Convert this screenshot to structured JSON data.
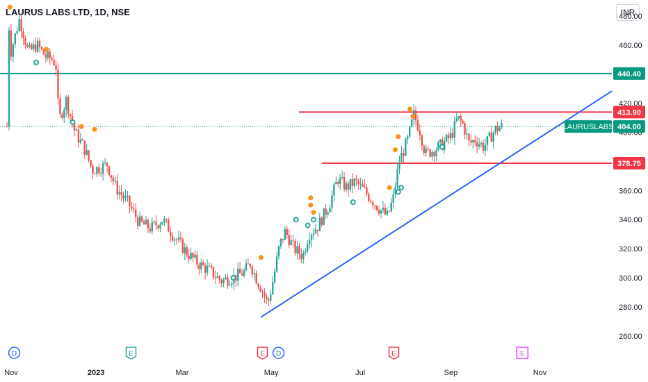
{
  "header": {
    "title": "LAURUS LABS LTD, 1D, NSE"
  },
  "toolbar": {
    "currency": "INR"
  },
  "colors": {
    "up": "#26a69a",
    "down": "#ef5350",
    "support_line": "#089981",
    "resistance_line": "#f23645",
    "trendline": "#2962ff",
    "marker": "#f7931a",
    "dividend_badge": "#2962ff",
    "earnings_badge": "#f23645",
    "split_badge": "#26a69a",
    "future_badge": "#e040fb",
    "last_price": "#089981"
  },
  "chart_data": {
    "type": "candlestick",
    "symbol_label": "LAURUSLABS",
    "ylim": [
      258,
      492
    ],
    "y_ticks": [
      480,
      460,
      440,
      420,
      400,
      380,
      360,
      340,
      320,
      300,
      280,
      260
    ],
    "y_tick_labels": [
      "480.00",
      "460.00",
      "440.00",
      "420.00",
      "400.00",
      "380.00",
      "360.00",
      "340.00",
      "320.00",
      "300.00",
      "280.00",
      "260.00"
    ],
    "x_range_days": [
      0,
      372
    ],
    "x_ticks": [
      {
        "day": 0,
        "label": "Nov"
      },
      {
        "day": 61,
        "label": "2023"
      },
      {
        "day": 120,
        "label": "Mar"
      },
      {
        "day": 181,
        "label": "May"
      },
      {
        "day": 242,
        "label": "Jul"
      },
      {
        "day": 304,
        "label": "Sep"
      },
      {
        "day": 365,
        "label": "Nov"
      }
    ],
    "horizontal_levels": [
      {
        "price": 440.4,
        "label": "440.40",
        "role": "support"
      },
      {
        "price": 413.9,
        "label": "413.90",
        "role": "resistance"
      },
      {
        "price": 378.75,
        "label": "378.75",
        "role": "resistance"
      }
    ],
    "last_price": {
      "price": 404.0,
      "label": "404.00"
    },
    "trendline": {
      "start": {
        "day": 174,
        "price": 273
      },
      "end": {
        "day": 420,
        "price": 432
      }
    },
    "waypoints": [
      [
        2,
        484
      ],
      [
        4,
        455
      ],
      [
        10,
        478
      ],
      [
        16,
        455
      ],
      [
        22,
        460
      ],
      [
        28,
        452
      ],
      [
        33,
        450
      ],
      [
        35,
        445
      ],
      [
        37,
        408
      ],
      [
        42,
        422
      ],
      [
        48,
        400
      ],
      [
        54,
        390
      ],
      [
        60,
        374
      ],
      [
        66,
        376
      ],
      [
        70,
        378
      ],
      [
        76,
        362
      ],
      [
        84,
        352
      ],
      [
        92,
        338
      ],
      [
        100,
        334
      ],
      [
        108,
        340
      ],
      [
        116,
        328
      ],
      [
        124,
        318
      ],
      [
        132,
        310
      ],
      [
        140,
        305
      ],
      [
        148,
        298
      ],
      [
        156,
        300
      ],
      [
        164,
        304
      ],
      [
        168,
        310
      ],
      [
        172,
        300
      ],
      [
        176,
        292
      ],
      [
        180,
        282
      ],
      [
        184,
        300
      ],
      [
        188,
        322
      ],
      [
        192,
        332
      ],
      [
        198,
        320
      ],
      [
        204,
        315
      ],
      [
        208,
        330
      ],
      [
        214,
        335
      ],
      [
        222,
        350
      ],
      [
        228,
        368
      ],
      [
        234,
        362
      ],
      [
        240,
        366
      ],
      [
        246,
        360
      ],
      [
        250,
        355
      ],
      [
        256,
        348
      ],
      [
        262,
        342
      ],
      [
        266,
        355
      ],
      [
        270,
        380
      ],
      [
        276,
        395
      ],
      [
        280,
        412
      ],
      [
        284,
        402
      ],
      [
        288,
        385
      ],
      [
        294,
        388
      ],
      [
        300,
        392
      ],
      [
        306,
        398
      ],
      [
        310,
        410
      ],
      [
        314,
        405
      ],
      [
        318,
        392
      ],
      [
        322,
        395
      ],
      [
        328,
        390
      ],
      [
        332,
        396
      ],
      [
        336,
        402
      ],
      [
        340,
        404
      ]
    ],
    "markers": [
      {
        "day": 2,
        "price": 486
      },
      {
        "day": 27,
        "price": 457
      },
      {
        "day": 51,
        "price": 404
      },
      {
        "day": 60,
        "price": 402
      },
      {
        "day": 174,
        "price": 314
      },
      {
        "day": 208,
        "price": 355
      },
      {
        "day": 208,
        "price": 350
      },
      {
        "day": 210,
        "price": 345
      },
      {
        "day": 262,
        "price": 362
      },
      {
        "day": 266,
        "price": 388
      },
      {
        "day": 268,
        "price": 397
      },
      {
        "day": 276,
        "price": 416
      },
      {
        "day": 278,
        "price": 411
      }
    ],
    "circle_markers": [
      {
        "day": 20,
        "price": 448
      },
      {
        "day": 45,
        "price": 407
      },
      {
        "day": 155,
        "price": 300
      },
      {
        "day": 198,
        "price": 340
      },
      {
        "day": 206,
        "price": 336
      },
      {
        "day": 210,
        "price": 340
      },
      {
        "day": 237,
        "price": 352
      },
      {
        "day": 268,
        "price": 359
      },
      {
        "day": 270,
        "price": 362
      },
      {
        "day": 298,
        "price": 390
      }
    ],
    "events": [
      {
        "day": 5,
        "type": "D",
        "kind": "dividend"
      },
      {
        "day": 85,
        "type": "E",
        "kind": "split"
      },
      {
        "day": 175,
        "type": "E",
        "kind": "earnings"
      },
      {
        "day": 186,
        "type": "D",
        "kind": "dividend"
      },
      {
        "day": 265,
        "type": "E",
        "kind": "earnings"
      },
      {
        "day": 353,
        "type": "E",
        "kind": "future"
      }
    ]
  }
}
